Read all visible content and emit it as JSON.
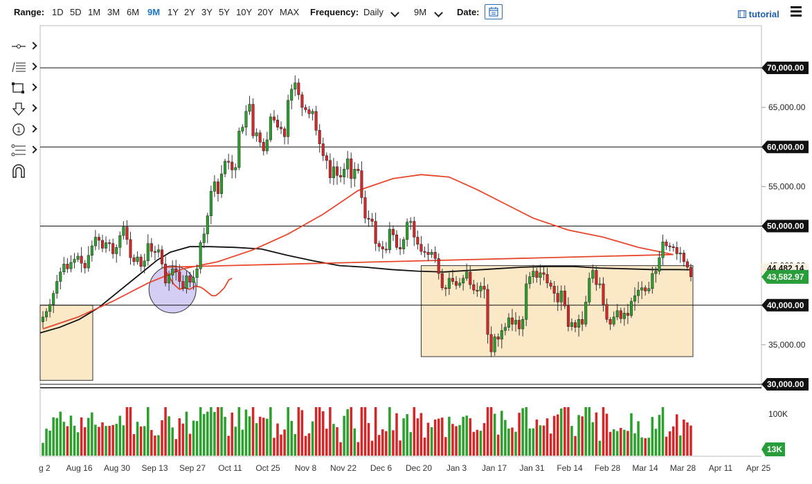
{
  "toolbar": {
    "range_label": "Range:",
    "ranges": [
      "1D",
      "5D",
      "1M",
      "3M",
      "6M",
      "9M",
      "1Y",
      "2Y",
      "3Y",
      "5Y",
      "10Y",
      "20Y",
      "MAX"
    ],
    "active_range": "9M",
    "frequency_label": "Frequency:",
    "frequency_value": "Daily",
    "period_value": "9M",
    "date_label": "Date:",
    "tutorial_label": "tutorial"
  },
  "sidebar": {
    "tools": [
      "line-tool-icon",
      "fib-tool-icon",
      "rectangle-tool-icon",
      "arrow-tool-icon",
      "number-tool-icon",
      "pitchfork-tool-icon",
      "magnet-icon"
    ]
  },
  "colors": {
    "up": "#2ca02c",
    "down": "#d62728",
    "ma_fast": "#e8462a",
    "ma_slow": "#111111",
    "box_fill": "#fbe8c6",
    "circle_fill": "#c9c2f2",
    "accent": "#1a73c9",
    "price_badge": "#2a9d3b"
  },
  "chart_data": {
    "type": "candlestick",
    "title": "",
    "y_axis": {
      "range": [
        28000,
        72000
      ],
      "ticks": [
        "70,000.00",
        "65,000.00",
        "60,000.00",
        "55,000.00",
        "50,000.00",
        "45,000.00",
        "40,000.00",
        "35,000.00",
        "30,000.00"
      ],
      "horizontal_levels": [
        70000,
        60000,
        50000,
        40000,
        30000
      ]
    },
    "x_axis": {
      "ticks": [
        "g 2",
        "Aug 16",
        "Aug 30",
        "Sep 13",
        "Sep 27",
        "Oct 11",
        "Oct 25",
        "Nov 8",
        "Nov 22",
        "Dec 6",
        "Dec 20",
        "Jan 3",
        "Jan 17",
        "Jan 31",
        "Feb 14",
        "Feb 28",
        "Mar 14",
        "Mar 28",
        "Apr 11",
        "Apr 25"
      ]
    },
    "last_price": "43,582.97",
    "other_price_label": "44,482.14",
    "volume_labels": {
      "scale": "100K",
      "last": "13K"
    },
    "closes": [
      38500,
      39200,
      40100,
      41500,
      43000,
      44200,
      45200,
      44600,
      45400,
      45800,
      46200,
      45300,
      44700,
      46300,
      47500,
      48600,
      48200,
      47200,
      47900,
      47800,
      46500,
      47300,
      48800,
      49900,
      48300,
      46000,
      45500,
      46100,
      44900,
      45600,
      47800,
      46800,
      46700,
      47000,
      45200,
      42800,
      43800,
      44600,
      44200,
      43000,
      42100,
      43700,
      42900,
      43500,
      44600,
      47900,
      49000,
      51300,
      54400,
      55600,
      54100,
      56600,
      58200,
      58100,
      57100,
      57400,
      62000,
      62500,
      64500,
      65400,
      61400,
      61800,
      60600,
      59500,
      60900,
      63800,
      63400,
      62500,
      62300,
      61300,
      65900,
      67300,
      68100,
      66600,
      65000,
      64700,
      64200,
      64500,
      62100,
      60400,
      58900,
      58300,
      56100,
      57500,
      56400,
      56200,
      57200,
      58500,
      56000,
      57200,
      57000,
      53600,
      51000,
      50900,
      50600,
      47800,
      47400,
      47100,
      47000,
      49600,
      48900,
      47300,
      47100,
      48300,
      50500,
      50600,
      48600,
      47700,
      46800,
      46700,
      46400,
      46700,
      45900,
      44000,
      42200,
      42100,
      43400,
      43000,
      42500,
      42800,
      43400,
      44200,
      42600,
      41900,
      41800,
      42400,
      42000,
      36300,
      34100,
      36000,
      35700,
      36800,
      37200,
      38400,
      37600,
      38100,
      37000,
      38200,
      42700,
      43600,
      44300,
      43500,
      44100,
      43900,
      42800,
      42400,
      41500,
      40400,
      41800,
      39900,
      37300,
      37800,
      37200,
      38200,
      37600,
      40400,
      43400,
      44400,
      42600,
      42700,
      40100,
      38200,
      37600,
      38500,
      39300,
      38300,
      39000,
      38700,
      40500,
      41200,
      41900,
      42200,
      41800,
      42100,
      44000,
      44300,
      46000,
      48000,
      47500,
      47400,
      47300,
      46500,
      46600,
      45500,
      44800,
      43600
    ],
    "ma_fast": {
      "name": "",
      "points": [
        [
          0,
          37000
        ],
        [
          10,
          38500
        ],
        [
          20,
          40500
        ],
        [
          30,
          42800
        ],
        [
          40,
          44600
        ],
        [
          50,
          45500
        ],
        [
          60,
          47000
        ],
        [
          70,
          49000
        ],
        [
          80,
          51500
        ],
        [
          90,
          54500
        ],
        [
          100,
          56000
        ],
        [
          108,
          56500
        ],
        [
          116,
          56200
        ],
        [
          124,
          54600
        ],
        [
          132,
          52800
        ],
        [
          140,
          51000
        ],
        [
          150,
          49500
        ],
        [
          160,
          48600
        ],
        [
          170,
          47300
        ],
        [
          180,
          46400
        ],
        [
          190,
          44800
        ],
        [
          198,
          43600
        ],
        [
          206,
          42600
        ],
        [
          214,
          42000
        ],
        [
          222,
          42200
        ],
        [
          230,
          42000
        ],
        [
          238,
          42400
        ],
        [
          246,
          42300
        ],
        [
          252,
          42000
        ],
        [
          258,
          41600
        ],
        [
          264,
          41200
        ],
        [
          270,
          41200
        ],
        [
          276,
          41600
        ],
        [
          283,
          42200
        ],
        [
          290,
          43200
        ],
        [
          295,
          43400
        ]
      ]
    },
    "ma_slow": {
      "name": "",
      "points": [
        [
          0,
          36500
        ],
        [
          30,
          37200
        ],
        [
          60,
          38200
        ],
        [
          90,
          39700
        ],
        [
          120,
          41700
        ],
        [
          150,
          43700
        ],
        [
          180,
          45700
        ],
        [
          200,
          46700
        ],
        [
          230,
          47400
        ],
        [
          260,
          47400
        ],
        [
          300,
          47300
        ],
        [
          340,
          47100
        ],
        [
          380,
          46300
        ],
        [
          420,
          45600
        ],
        [
          460,
          45000
        ],
        [
          500,
          44800
        ],
        [
          540,
          44500
        ],
        [
          580,
          44300
        ],
        [
          620,
          44200
        ],
        [
          660,
          44400
        ],
        [
          700,
          44600
        ],
        [
          740,
          44800
        ],
        [
          780,
          44900
        ],
        [
          820,
          44900
        ],
        [
          860,
          44700
        ],
        [
          900,
          44600
        ],
        [
          940,
          44500
        ],
        [
          980,
          44500
        ],
        [
          1000,
          44480
        ]
      ]
    },
    "annotations": [
      {
        "kind": "box",
        "from_bar": 0,
        "to_bar": 12,
        "y_range": [
          30500,
          40000
        ]
      },
      {
        "kind": "box",
        "from_bar": 108,
        "to_bar": 185,
        "y_range": [
          33500,
          45000
        ]
      },
      {
        "kind": "circle",
        "center_bar": 37,
        "center_y": 42000
      }
    ]
  }
}
